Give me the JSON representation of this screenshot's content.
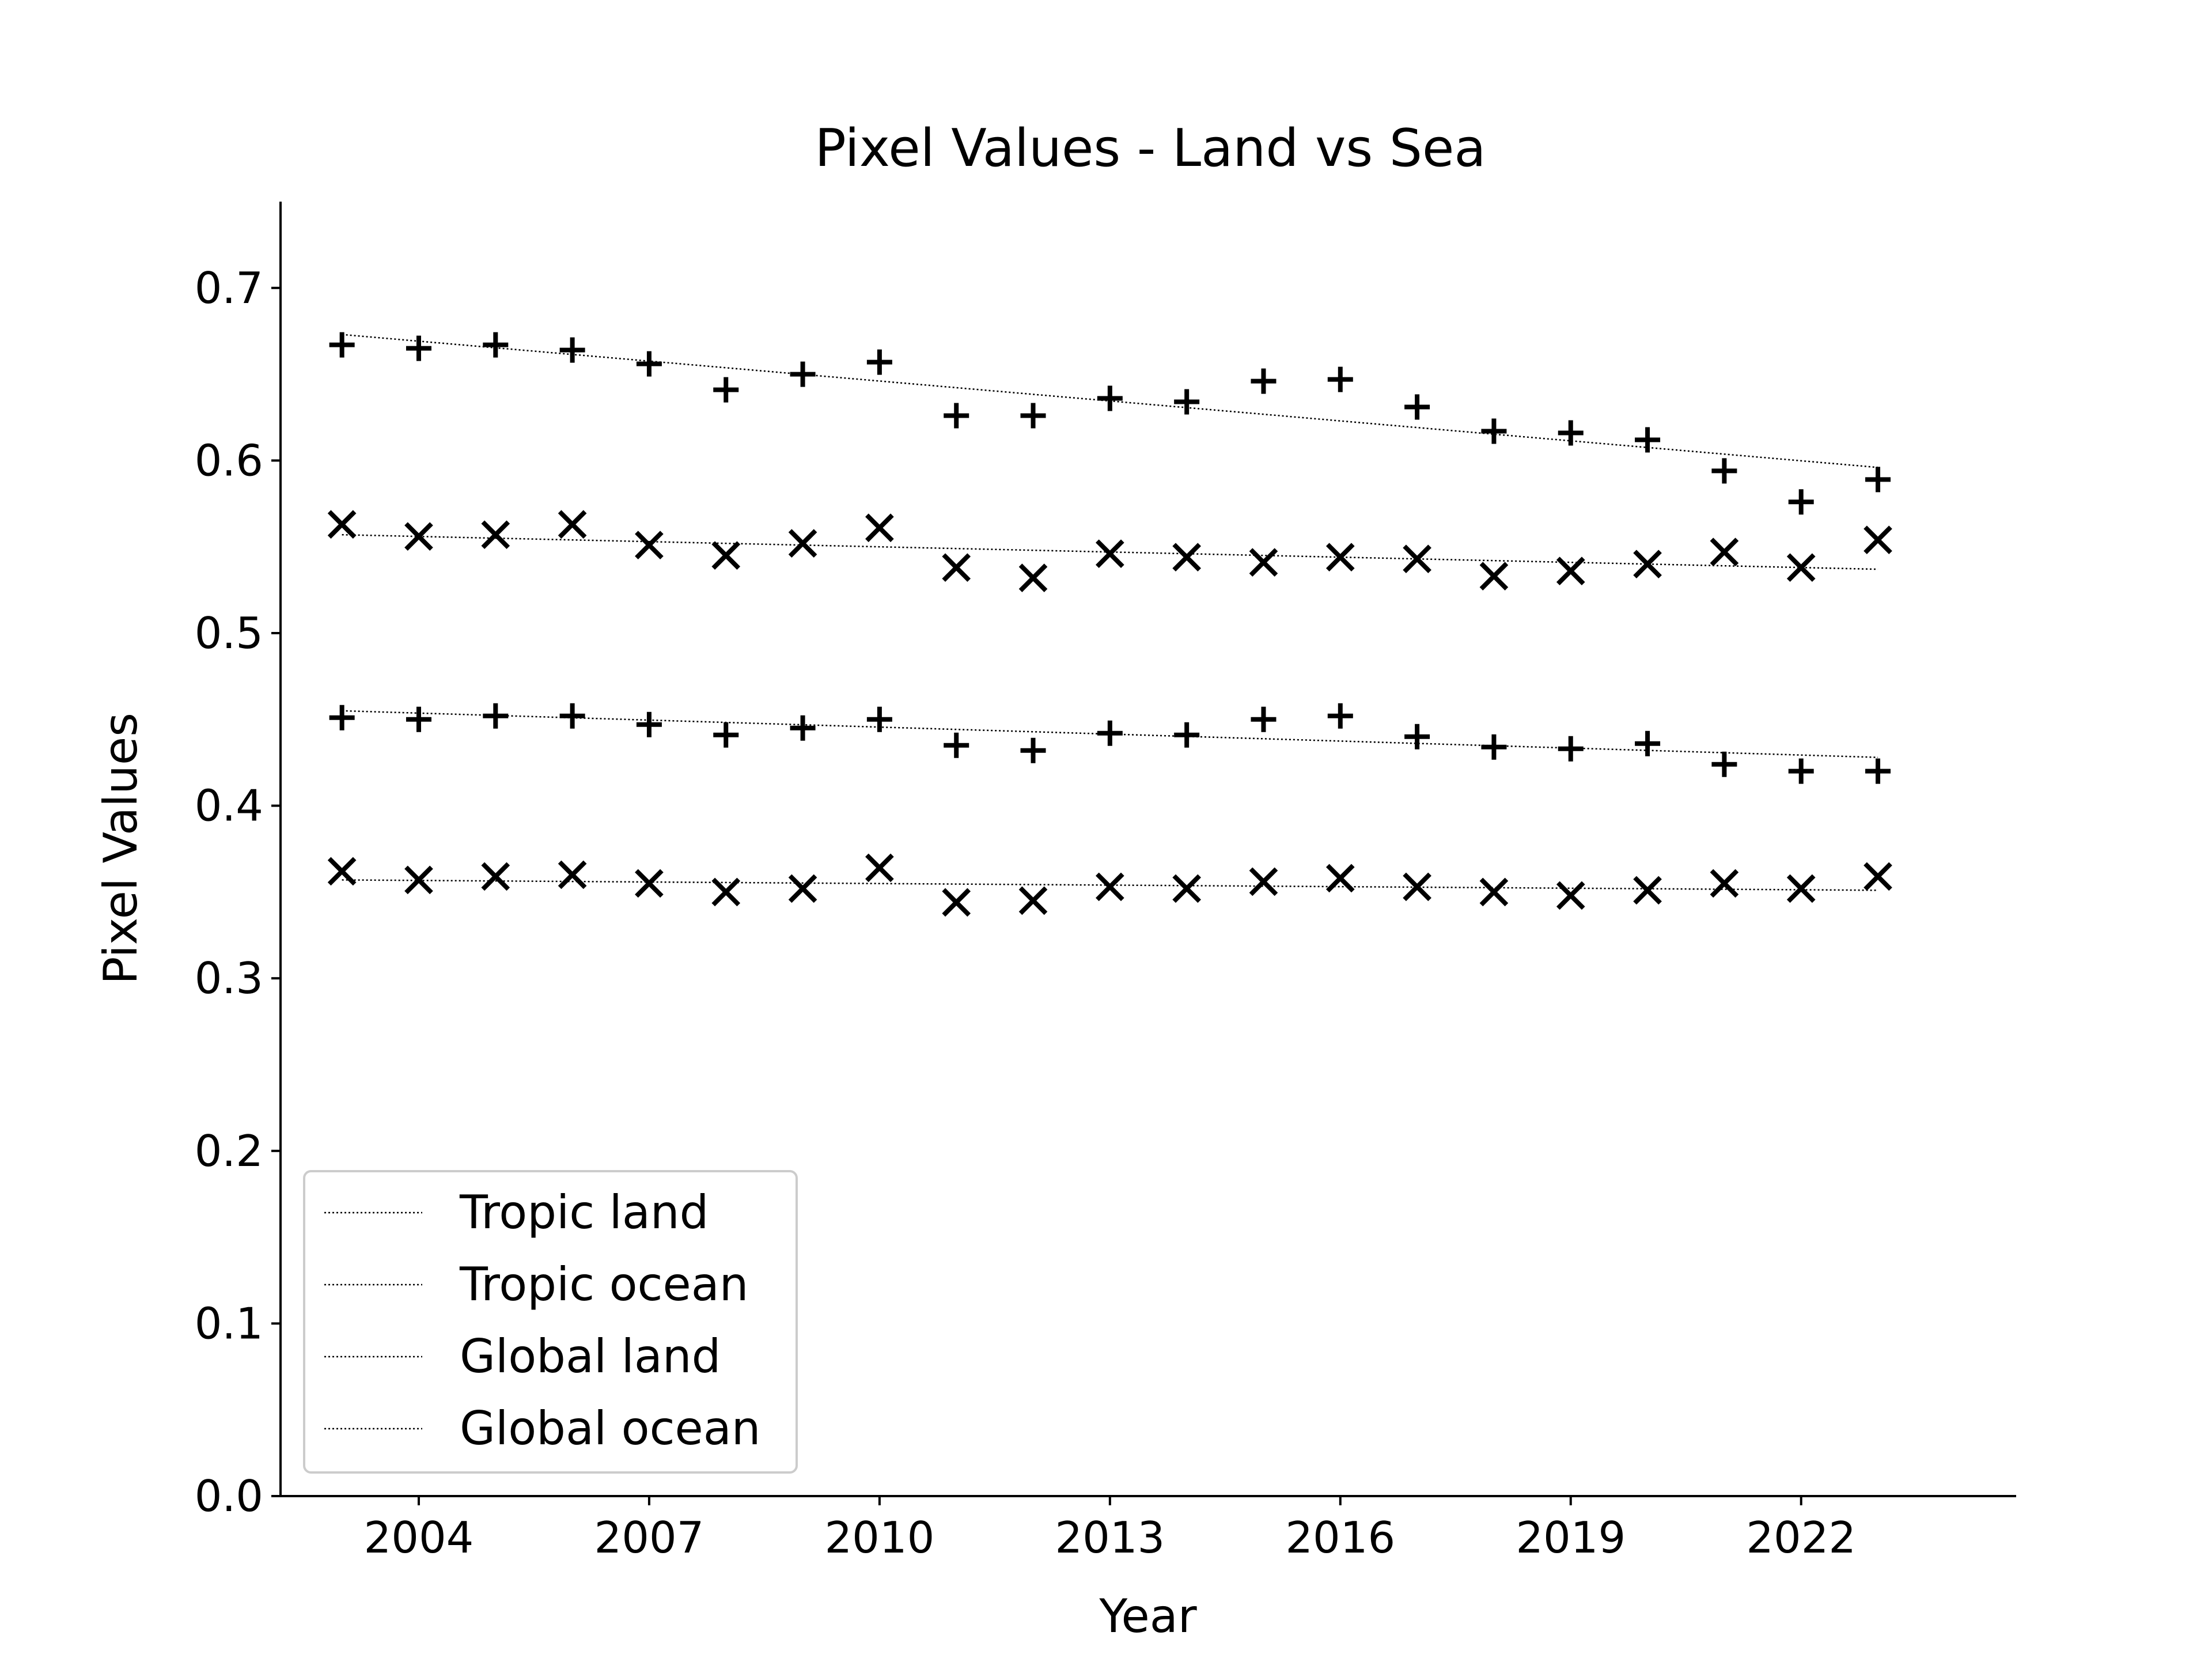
{
  "chart_data": {
    "type": "scatter",
    "title": "Pixel Values - Land vs Sea",
    "xlabel": "Year",
    "ylabel": "Pixel Values",
    "xlim": [
      2002.2,
      2024.8
    ],
    "ylim": [
      0.0,
      0.75
    ],
    "xticks": [
      2004,
      2007,
      2010,
      2013,
      2016,
      2019,
      2022
    ],
    "yticks": [
      0.0,
      0.1,
      0.2,
      0.3,
      0.4,
      0.5,
      0.6,
      0.7
    ],
    "grid": false,
    "legend_position": "lower-left",
    "x": [
      2003,
      2004,
      2005,
      2006,
      2007,
      2008,
      2009,
      2010,
      2011,
      2012,
      2013,
      2014,
      2015,
      2016,
      2017,
      2018,
      2019,
      2020,
      2021,
      2022,
      2023
    ],
    "series": [
      {
        "name": "Tropic land",
        "marker": "plus",
        "values": [
          0.667,
          0.665,
          0.667,
          0.664,
          0.656,
          0.641,
          0.65,
          0.657,
          0.626,
          0.626,
          0.636,
          0.634,
          0.646,
          0.647,
          0.631,
          0.617,
          0.616,
          0.612,
          0.594,
          0.576,
          0.589
        ],
        "trend": [
          0.673,
          0.596
        ]
      },
      {
        "name": "Tropic ocean",
        "marker": "x",
        "values": [
          0.563,
          0.556,
          0.557,
          0.563,
          0.551,
          0.545,
          0.552,
          0.561,
          0.538,
          0.532,
          0.546,
          0.544,
          0.541,
          0.544,
          0.543,
          0.533,
          0.536,
          0.54,
          0.547,
          0.538,
          0.554
        ],
        "trend": [
          0.557,
          0.537
        ]
      },
      {
        "name": "Global land",
        "marker": "plus",
        "values": [
          0.451,
          0.45,
          0.452,
          0.452,
          0.447,
          0.441,
          0.445,
          0.45,
          0.435,
          0.432,
          0.442,
          0.441,
          0.45,
          0.452,
          0.44,
          0.434,
          0.433,
          0.436,
          0.424,
          0.42,
          0.42
        ],
        "trend": [
          0.455,
          0.428
        ]
      },
      {
        "name": "Global ocean",
        "marker": "x",
        "values": [
          0.362,
          0.357,
          0.359,
          0.36,
          0.355,
          0.35,
          0.352,
          0.364,
          0.344,
          0.345,
          0.353,
          0.352,
          0.356,
          0.358,
          0.353,
          0.35,
          0.348,
          0.351,
          0.355,
          0.352,
          0.359
        ],
        "trend": [
          0.357,
          0.351
        ]
      }
    ]
  }
}
